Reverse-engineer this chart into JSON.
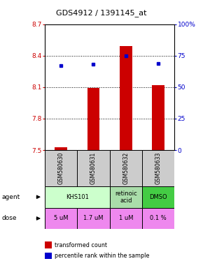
{
  "title": "GDS4912 / 1391145_at",
  "samples": [
    "GSM580630",
    "GSM580631",
    "GSM580632",
    "GSM580633"
  ],
  "bar_values": [
    7.53,
    8.09,
    8.49,
    8.12
  ],
  "dot_values": [
    67,
    68,
    75,
    69
  ],
  "bar_base": 7.5,
  "ylim_left": [
    7.5,
    8.7
  ],
  "ylim_right": [
    0,
    100
  ],
  "yticks_left": [
    7.5,
    7.8,
    8.1,
    8.4,
    8.7
  ],
  "yticks_right": [
    0,
    25,
    50,
    75,
    100
  ],
  "ytick_labels_left": [
    "7.5",
    "7.8",
    "8.1",
    "8.4",
    "8.7"
  ],
  "ytick_labels_right": [
    "0",
    "25",
    "50",
    "75",
    "100%"
  ],
  "bar_color": "#cc0000",
  "dot_color": "#0000cc",
  "agent_defs": [
    {
      "label": "KHS101",
      "start": 0,
      "end": 2,
      "color": "#ccffcc"
    },
    {
      "label": "retinoic\nacid",
      "start": 2,
      "end": 3,
      "color": "#aaddaa"
    },
    {
      "label": "DMSO",
      "start": 3,
      "end": 4,
      "color": "#44cc44"
    }
  ],
  "dose_labels": [
    "5 uM",
    "1.7 uM",
    "1 uM",
    "0.1 %"
  ],
  "dose_color": "#ee88ee",
  "sample_box_color": "#cccccc",
  "legend_bar_label": "transformed count",
  "legend_dot_label": "percentile rank within the sample"
}
